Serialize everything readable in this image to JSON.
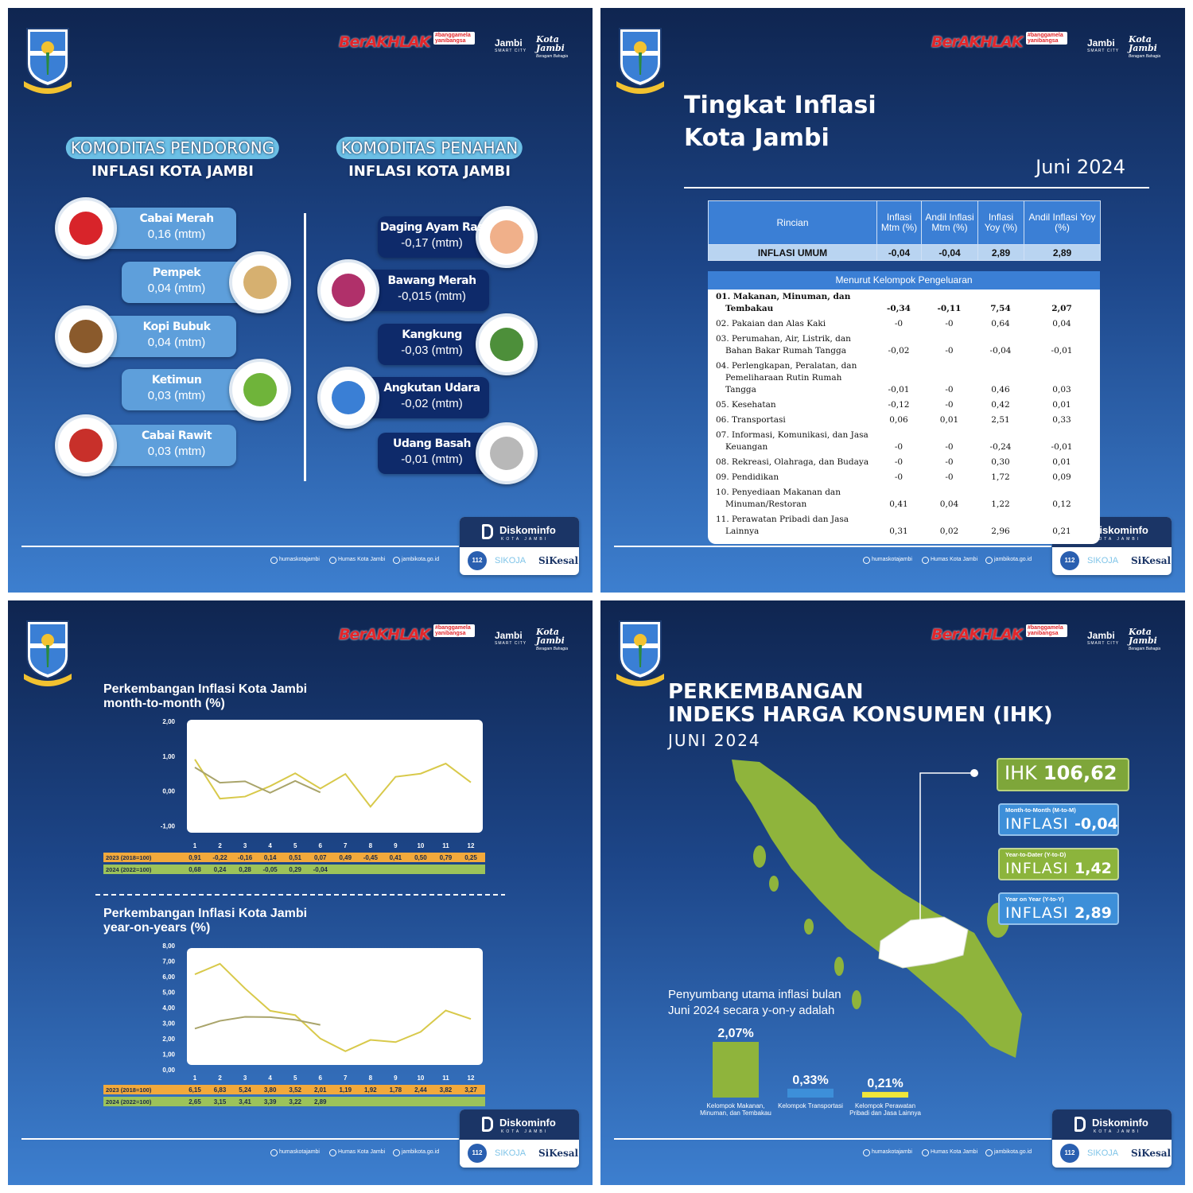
{
  "branding": {
    "berakhlak": "BerAKHLAK",
    "bangga": "#banggamelayanibangsa",
    "smart_city": "Jambi",
    "smart_city_sub": "SMART CITY",
    "kota_jambi": "Kota Jambi",
    "kota_jambi_sub": "Beragam Bahagia",
    "diskominfo": "Diskominfo",
    "diskominfo_sub": "KOTA JAMBI",
    "socials": [
      "humaskotajambi",
      "Humas Kota Jambi",
      "jambikota.go.id"
    ],
    "apps": [
      "112",
      "SIKOJA",
      "SiKesal"
    ]
  },
  "commodities": {
    "pendorong_title": [
      "KOMODITAS PENDORONG",
      "INFLASI KOTA JAMBI"
    ],
    "penahan_title": [
      "KOMODITAS PENAHAN",
      "INFLASI KOTA JAMBI"
    ],
    "pendorong": [
      {
        "name": "Cabai Merah",
        "value": "0,16 (mtm)"
      },
      {
        "name": "Pempek",
        "value": "0,04 (mtm)"
      },
      {
        "name": "Kopi Bubuk",
        "value": "0,04 (mtm)"
      },
      {
        "name": "Ketimun",
        "value": "0,03 (mtm)"
      },
      {
        "name": "Cabai Rawit",
        "value": "0,03 (mtm)"
      }
    ],
    "penahan": [
      {
        "name": "Daging Ayam Ras",
        "value": "-0,17 (mtm)"
      },
      {
        "name": "Bawang Merah",
        "value": "-0,015 (mtm)"
      },
      {
        "name": "Kangkung",
        "value": "-0,03 (mtm)"
      },
      {
        "name": "Angkutan Udara",
        "value": "-0,02 (mtm)"
      },
      {
        "name": "Udang Basah",
        "value": "-0,01 (mtm)"
      }
    ]
  },
  "inflation_table": {
    "title": [
      "Tingkat Inflasi",
      "Kota Jambi"
    ],
    "period": "Juni 2024",
    "header": [
      "Rincian",
      "Inflasi Mtm (%)",
      "Andil Inflasi Mtm (%)",
      "Inflasi Yoy (%)",
      "Andil Inflasi Yoy (%)"
    ],
    "general": [
      "INFLASI UMUM",
      "-0,04",
      "-0,04",
      "2,89",
      "2,89"
    ],
    "section": "Menurut Kelompok Pengeluaran",
    "rows": [
      [
        "01. Makanan, Minuman, dan Tembakau",
        "-0,34",
        "-0,11",
        "7,54",
        "2,07"
      ],
      [
        "02. Pakaian dan Alas Kaki",
        "-0",
        "-0",
        "0,64",
        "0,04"
      ],
      [
        "03. Perumahan, Air, Listrik, dan Bahan Bakar Rumah Tangga",
        "-0,02",
        "-0",
        "-0,04",
        "-0,01"
      ],
      [
        "04. Perlengkapan, Peralatan, dan Pemeliharaan Rutin Rumah Tangga",
        "-0,01",
        "-0",
        "0,46",
        "0,03"
      ],
      [
        "05. Kesehatan",
        "-0,12",
        "-0",
        "0,42",
        "0,01"
      ],
      [
        "06. Transportasi",
        "0,06",
        "0,01",
        "2,51",
        "0,33"
      ],
      [
        "07. Informasi, Komunikasi, dan Jasa Keuangan",
        "-0",
        "-0",
        "-0,24",
        "-0,01"
      ],
      [
        "08. Rekreasi, Olahraga, dan Budaya",
        "-0",
        "-0",
        "0,30",
        "0,01"
      ],
      [
        "09. Pendidikan",
        "-0",
        "-0",
        "1,72",
        "0,09"
      ],
      [
        "10. Penyediaan Makanan dan Minuman/Restoran",
        "0,41",
        "0,04",
        "1,22",
        "0,12"
      ],
      [
        "11. Perawatan Pribadi dan Jasa Lainnya",
        "0,31",
        "0,02",
        "2,96",
        "0,21"
      ]
    ]
  },
  "ihk": {
    "title": [
      "PERKEMBANGAN",
      "INDEKS HARGA KONSUMEN (IHK)"
    ],
    "period": "JUNI 2024",
    "index_label": "IHK",
    "index_value": "106,62",
    "cards": [
      {
        "caption": "Month-to-Month (M-to-M)",
        "label": "INFLASI",
        "value": "-0,04",
        "color": "#3d8fd9"
      },
      {
        "caption": "Year-to-Dater (Y-to-D)",
        "label": "INFLASI",
        "value": "1,42",
        "color": "#8cb43c"
      },
      {
        "caption": "Year on Year (Y-to-Y)",
        "label": "INFLASI",
        "value": "2,89",
        "color": "#3d8fd9"
      }
    ]
  },
  "chart_data": [
    {
      "type": "line",
      "title": "Perkembangan Inflasi Kota Jambi",
      "subtitle": "month-to-month (%)",
      "categories": [
        "1",
        "2",
        "3",
        "4",
        "5",
        "6",
        "7",
        "8",
        "9",
        "10",
        "11",
        "12"
      ],
      "ylim": [
        -1.2,
        2.05
      ],
      "yticks": [
        {
          "value": 2,
          "label": "2,00"
        },
        {
          "value": 1,
          "label": "1,00"
        },
        {
          "value": 0,
          "label": "0,00"
        },
        {
          "value": -1,
          "label": "-1,00"
        }
      ],
      "series": [
        {
          "name": "2023 (2018=100)",
          "color": "#d8c94a",
          "label_bg": "#f2a93b",
          "values": [
            0.91,
            -0.22,
            -0.16,
            0.14,
            0.51,
            0.07,
            0.49,
            -0.45,
            0.41,
            0.5,
            0.79,
            0.25
          ],
          "value_labels": [
            "0,91",
            "-0,22",
            "-0,16",
            "0,14",
            "0,51",
            "0,07",
            "0,49",
            "-0,45",
            "0,41",
            "0,50",
            "0,79",
            "0,25"
          ]
        },
        {
          "name": "2024 (2022=100)",
          "color": "#a9a46a",
          "label_bg": "#9cc35a",
          "values": [
            0.68,
            0.24,
            0.28,
            -0.05,
            0.29,
            -0.04,
            null,
            null,
            null,
            null,
            null,
            null
          ],
          "value_labels": [
            "0,68",
            "0,24",
            "0,28",
            "-0,05",
            "0,29",
            "-0,04",
            null,
            null,
            null,
            null,
            null,
            null
          ]
        }
      ]
    },
    {
      "type": "line",
      "title": "Perkembangan Inflasi Kota Jambi",
      "subtitle": "year-on-years (%)",
      "categories": [
        "1",
        "2",
        "3",
        "4",
        "5",
        "6",
        "7",
        "8",
        "9",
        "10",
        "11",
        "12"
      ],
      "ylim": [
        0,
        8
      ],
      "yticks": [
        {
          "value": 8,
          "label": "8,00"
        },
        {
          "value": 7,
          "label": "7,00"
        },
        {
          "value": 6,
          "label": "6,00"
        },
        {
          "value": 5,
          "label": "5,00"
        },
        {
          "value": 4,
          "label": "4,00"
        },
        {
          "value": 3,
          "label": "3,00"
        },
        {
          "value": 2,
          "label": "2,00"
        },
        {
          "value": 1,
          "label": "1,00"
        },
        {
          "value": 0,
          "label": "0,00"
        }
      ],
      "series": [
        {
          "name": "2023 (2018=100)",
          "color": "#d8c94a",
          "label_bg": "#f2a93b",
          "values": [
            6.15,
            6.83,
            5.24,
            3.8,
            3.52,
            2.01,
            1.19,
            1.92,
            1.78,
            2.44,
            3.82,
            3.27
          ],
          "value_labels": [
            "6,15",
            "6,83",
            "5,24",
            "3,80",
            "3,52",
            "2,01",
            "1,19",
            "1,92",
            "1,78",
            "2,44",
            "3,82",
            "3,27"
          ]
        },
        {
          "name": "2024 (2022=100)",
          "color": "#a9a46a",
          "label_bg": "#9cc35a",
          "values": [
            2.65,
            3.15,
            3.41,
            3.39,
            3.22,
            2.89,
            null,
            null,
            null,
            null,
            null,
            null
          ],
          "value_labels": [
            "2,65",
            "3,15",
            "3,41",
            "3,39",
            "3,22",
            "2,89",
            null,
            null,
            null,
            null,
            null,
            null
          ]
        }
      ]
    },
    {
      "type": "bar",
      "title": [
        "Penyumbang utama inflasi bulan",
        "Juni 2024 secara y-on-y adalah"
      ],
      "categories": [
        "Kelompok Makanan, Minuman, dan Tembakau",
        "Kelompok Transportasi",
        "Kelompok Perawatan Pribadi dan Jasa Lainnya"
      ],
      "values": [
        2.07,
        0.33,
        0.21
      ],
      "value_labels": [
        "2,07%",
        "0,33%",
        "0,21%"
      ],
      "colors": [
        "#8fb43c",
        "#3d8fd9",
        "#f0e63a"
      ]
    }
  ]
}
